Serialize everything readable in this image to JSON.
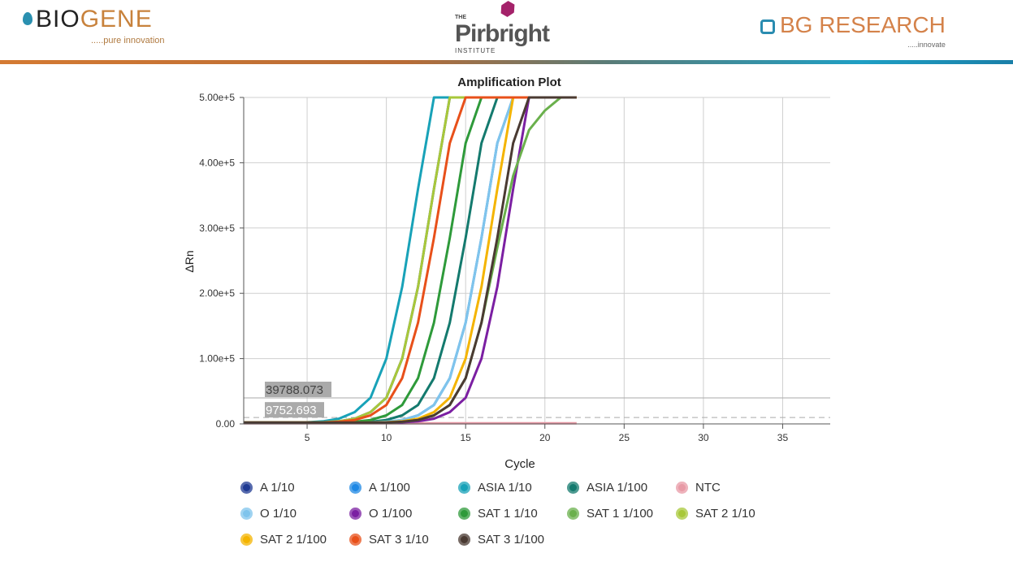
{
  "header": {
    "logo_left": {
      "text_a": "BIO",
      "text_b": "GENE",
      "tagline": ".....pure innovation"
    },
    "logo_center": {
      "the": "THE",
      "name": "Pirbright",
      "sub": "INSTITUTE"
    },
    "logo_right": {
      "text_a": "BG ",
      "text_b": "RESEARCH",
      "tagline": ".....innovate"
    }
  },
  "chart_data": {
    "type": "line",
    "title": "Amplification Plot",
    "xlabel": "Cycle",
    "ylabel": "ΔRn",
    "xlim": [
      1,
      38
    ],
    "ylim": [
      0,
      500000
    ],
    "x_ticks": [
      "5",
      "10",
      "15",
      "20",
      "25",
      "30",
      "35"
    ],
    "x_tick_values": [
      5,
      10,
      15,
      20,
      25,
      30,
      35
    ],
    "y_ticks": [
      "0.00",
      "1.00e+5",
      "2.00e+5",
      "3.00e+5",
      "4.00e+5",
      "5.00e+5"
    ],
    "y_tick_values": [
      0,
      100000,
      200000,
      300000,
      400000,
      500000
    ],
    "grid": true,
    "legend_position": "bottom",
    "thresholds": [
      {
        "label": "39788.073",
        "value": 39788.073,
        "style": "solid"
      },
      {
        "label": "9752.693",
        "value": 9752.693,
        "style": "dashed"
      }
    ],
    "x": [
      1,
      2,
      3,
      4,
      5,
      6,
      7,
      8,
      9,
      10,
      11,
      12,
      13,
      14,
      15,
      16,
      17,
      18,
      19,
      20,
      21,
      22
    ],
    "series": [
      {
        "name": "A 1/10",
        "color": "#1f3a93",
        "values": [
          2000,
          2000,
          2000,
          2000,
          2000,
          2500,
          4000,
          8000,
          18000,
          40000,
          100000,
          210000,
          360000,
          500000,
          500000,
          500000,
          500000,
          500000,
          500000,
          500000,
          500000,
          500000
        ]
      },
      {
        "name": "A 1/100",
        "color": "#1e88e5",
        "values": [
          2000,
          2000,
          2000,
          2000,
          2000,
          2000,
          2000,
          2000,
          2250,
          3250,
          6000,
          13000,
          29000,
          70000,
          155000,
          285000,
          430000,
          500000,
          500000,
          500000,
          500000,
          500000
        ]
      },
      {
        "name": "ASIA 1/10",
        "color": "#18a2b8",
        "values": [
          2000,
          2000,
          2000,
          2000,
          2500,
          4000,
          8000,
          18000,
          40000,
          100000,
          210000,
          360000,
          500000,
          500000,
          500000,
          500000,
          500000,
          500000,
          500000,
          500000,
          500000,
          500000
        ]
      },
      {
        "name": "ASIA 1/100",
        "color": "#147a6e",
        "values": [
          2000,
          2000,
          2000,
          2000,
          2000,
          2000,
          2000,
          2250,
          3250,
          6000,
          13000,
          29000,
          70000,
          155000,
          285000,
          430000,
          500000,
          500000,
          500000,
          500000,
          500000,
          500000
        ]
      },
      {
        "name": "NTC",
        "color": "#e89aa6",
        "values": [
          1000,
          1000,
          1000,
          1000,
          1000,
          1000,
          1000,
          1000,
          1000,
          1000,
          1000,
          1000,
          1000,
          1000,
          1000,
          1000,
          1000,
          1000,
          1000,
          1000,
          1000,
          1000
        ]
      },
      {
        "name": "O 1/10",
        "color": "#7fc4ec",
        "values": [
          2000,
          2000,
          2000,
          2000,
          2000,
          2000,
          2000,
          2000,
          2250,
          3250,
          6000,
          13000,
          29000,
          70000,
          155000,
          285000,
          430000,
          500000,
          500000,
          500000,
          500000,
          500000
        ]
      },
      {
        "name": "O 1/100",
        "color": "#7b1fa2",
        "values": [
          2000,
          2000,
          2000,
          2000,
          2000,
          2000,
          2000,
          2000,
          2000,
          2000,
          2500,
          4000,
          8000,
          18000,
          40000,
          100000,
          210000,
          360000,
          500000,
          500000,
          500000,
          500000
        ]
      },
      {
        "name": "SAT 1 1/10",
        "color": "#2e9a3a",
        "values": [
          2000,
          2000,
          2000,
          2000,
          2000,
          2000,
          2250,
          3250,
          6000,
          13000,
          29000,
          70000,
          155000,
          285000,
          430000,
          500000,
          500000,
          500000,
          500000,
          500000,
          500000,
          500000
        ]
      },
      {
        "name": "SAT 1 1/100",
        "color": "#6ab04c",
        "values": [
          2000,
          2000,
          2000,
          2000,
          2000,
          2000,
          2000,
          2000,
          2000,
          2250,
          3250,
          6000,
          13000,
          29000,
          70000,
          155000,
          270000,
          380000,
          450000,
          480000,
          500000,
          500000
        ]
      },
      {
        "name": "SAT 2 1/10",
        "color": "#a8c83a",
        "values": [
          2000,
          2000,
          2000,
          2000,
          2000,
          2500,
          4000,
          8000,
          18000,
          40000,
          100000,
          210000,
          360000,
          500000,
          500000,
          500000,
          500000,
          500000,
          500000,
          500000,
          500000,
          500000
        ]
      },
      {
        "name": "SAT 2 1/100",
        "color": "#f4b400",
        "values": [
          2000,
          2000,
          2000,
          2000,
          2000,
          2000,
          2000,
          2000,
          2000,
          2500,
          4000,
          8000,
          18000,
          40000,
          100000,
          210000,
          360000,
          500000,
          500000,
          500000,
          500000,
          500000
        ]
      },
      {
        "name": "SAT 3 1/10",
        "color": "#e8501a",
        "values": [
          2000,
          2000,
          2000,
          2000,
          2000,
          2250,
          3250,
          6000,
          13000,
          29000,
          70000,
          155000,
          285000,
          430000,
          500000,
          500000,
          500000,
          500000,
          500000,
          500000,
          500000,
          500000
        ]
      },
      {
        "name": "SAT 3 1/100",
        "color": "#4a3a32",
        "values": [
          2000,
          2000,
          2000,
          2000,
          2000,
          2000,
          2000,
          2000,
          2000,
          2250,
          3250,
          6000,
          13000,
          29000,
          70000,
          155000,
          285000,
          430000,
          500000,
          500000,
          500000,
          500000
        ]
      }
    ]
  }
}
